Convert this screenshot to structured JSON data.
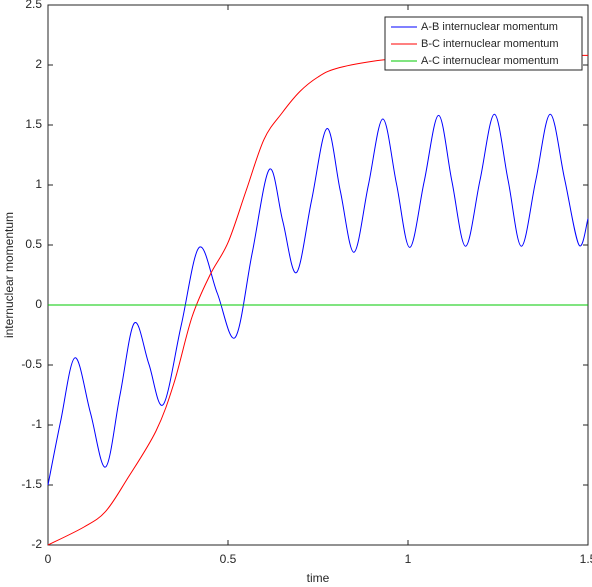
{
  "chart_data": {
    "type": "line",
    "xlabel": "time",
    "ylabel": "internuclear momentum",
    "xlim": [
      0,
      1.5
    ],
    "xticks": [
      0,
      0.5,
      1,
      1.5
    ],
    "ylim": [
      -2,
      2.5
    ],
    "yticks": [
      -2,
      -1.5,
      -1,
      -0.5,
      0,
      0.5,
      1,
      1.5,
      2,
      2.5
    ],
    "legend": "upper right",
    "series": [
      {
        "name": "A-B internuclear momentum",
        "color": "#0000ff",
        "x": [
          0,
          0.035,
          0.075,
          0.118,
          0.16,
          0.2,
          0.24,
          0.28,
          0.32,
          0.37,
          0.42,
          0.47,
          0.52,
          0.567,
          0.615,
          0.652,
          0.69,
          0.732,
          0.775,
          0.812,
          0.85,
          0.89,
          0.93,
          0.968,
          1.005,
          1.045,
          1.085,
          1.122,
          1.16,
          1.2,
          1.24,
          1.278,
          1.315,
          1.355,
          1.395,
          1.435,
          1.475,
          1.5
        ],
        "values": [
          -1.5,
          -0.97,
          -0.44,
          -0.9,
          -1.35,
          -0.75,
          -0.15,
          -0.49,
          -0.83,
          -0.17,
          0.48,
          0.1,
          -0.27,
          0.43,
          1.13,
          0.7,
          0.27,
          0.87,
          1.47,
          0.95,
          0.44,
          1.0,
          1.55,
          1.01,
          0.48,
          1.03,
          1.58,
          1.03,
          0.49,
          1.04,
          1.59,
          1.04,
          0.49,
          1.04,
          1.59,
          1.05,
          0.5,
          0.72
        ]
      },
      {
        "name": "B-C internuclear momentum",
        "color": "#ff0000",
        "x": [
          0,
          0.1,
          0.16,
          0.22,
          0.3,
          0.35,
          0.4,
          0.45,
          0.5,
          0.55,
          0.6,
          0.65,
          0.7,
          0.75,
          0.8,
          0.9,
          1.0,
          1.2,
          1.5
        ],
        "values": [
          -2,
          -1.85,
          -1.72,
          -1.45,
          -1.05,
          -0.65,
          -0.1,
          0.25,
          0.52,
          0.95,
          1.38,
          1.6,
          1.78,
          1.9,
          1.97,
          2.03,
          2.06,
          2.08,
          2.08
        ]
      },
      {
        "name": "A-C internuclear momentum",
        "color": "#00c800",
        "x": [
          0,
          1.5
        ],
        "values": [
          0,
          0
        ]
      }
    ]
  }
}
